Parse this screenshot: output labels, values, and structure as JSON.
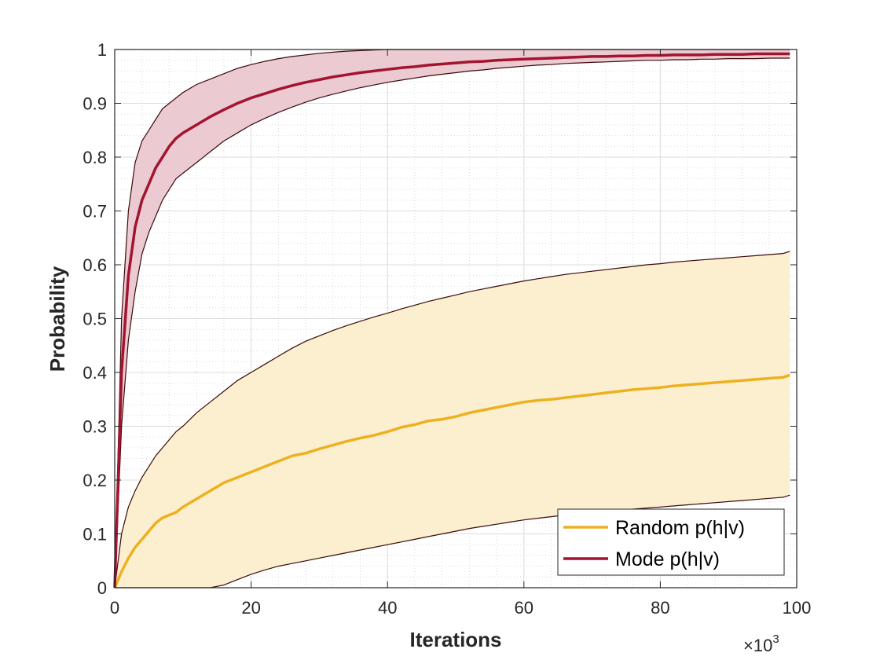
{
  "chart_data": {
    "type": "line",
    "title": "",
    "xlabel": "Iterations",
    "ylabel": "Probability",
    "xlim": [
      0,
      100
    ],
    "ylim": [
      0,
      1
    ],
    "xticks": [
      "0",
      "20",
      "40",
      "60",
      "80",
      "100"
    ],
    "yticks": [
      "0",
      "0.1",
      "0.2",
      "0.3",
      "0.4",
      "0.5",
      "0.6",
      "0.7",
      "0.8",
      "0.9",
      "1"
    ],
    "x_multiplier": {
      "base": "×10",
      "exponent": "3"
    },
    "grid": true,
    "minor_grid": true,
    "legend_position": "bottom-right",
    "x": [
      0,
      1,
      2,
      3,
      4,
      5,
      6,
      7,
      8,
      9,
      10,
      12,
      14,
      16,
      18,
      20,
      22,
      24,
      26,
      28,
      30,
      32,
      34,
      36,
      38,
      40,
      42,
      44,
      46,
      48,
      50,
      52,
      54,
      56,
      58,
      60,
      62,
      64,
      66,
      68,
      70,
      72,
      74,
      76,
      78,
      80,
      82,
      84,
      86,
      88,
      90,
      92,
      94,
      96,
      98,
      99
    ],
    "series": [
      {
        "name": "Random p(h|v)",
        "color": "#EDB120",
        "fill": "#FBEFCF",
        "mean": [
          0.0,
          0.03,
          0.055,
          0.075,
          0.09,
          0.105,
          0.12,
          0.13,
          0.135,
          0.14,
          0.15,
          0.165,
          0.18,
          0.195,
          0.205,
          0.215,
          0.225,
          0.235,
          0.245,
          0.25,
          0.258,
          0.265,
          0.272,
          0.278,
          0.283,
          0.29,
          0.298,
          0.303,
          0.31,
          0.313,
          0.318,
          0.325,
          0.33,
          0.335,
          0.34,
          0.345,
          0.348,
          0.35,
          0.353,
          0.356,
          0.359,
          0.362,
          0.365,
          0.368,
          0.37,
          0.372,
          0.375,
          0.377,
          0.379,
          0.381,
          0.383,
          0.385,
          0.387,
          0.389,
          0.391,
          0.395
        ],
        "lower": [
          0.0,
          0.0,
          0.0,
          0.0,
          0.0,
          0.0,
          0.0,
          0.0,
          0.0,
          0.0,
          0.0,
          0.0,
          0.0,
          0.005,
          0.015,
          0.025,
          0.033,
          0.04,
          0.045,
          0.05,
          0.055,
          0.06,
          0.065,
          0.07,
          0.075,
          0.08,
          0.085,
          0.09,
          0.095,
          0.1,
          0.105,
          0.11,
          0.114,
          0.118,
          0.122,
          0.126,
          0.129,
          0.132,
          0.135,
          0.138,
          0.14,
          0.142,
          0.144,
          0.146,
          0.148,
          0.15,
          0.152,
          0.154,
          0.156,
          0.158,
          0.16,
          0.162,
          0.164,
          0.166,
          0.168,
          0.172
        ],
        "upper": [
          0.0,
          0.1,
          0.15,
          0.18,
          0.205,
          0.225,
          0.245,
          0.26,
          0.275,
          0.29,
          0.3,
          0.325,
          0.345,
          0.365,
          0.385,
          0.4,
          0.415,
          0.43,
          0.445,
          0.458,
          0.468,
          0.478,
          0.487,
          0.495,
          0.503,
          0.51,
          0.518,
          0.525,
          0.532,
          0.538,
          0.544,
          0.55,
          0.555,
          0.56,
          0.565,
          0.57,
          0.574,
          0.578,
          0.582,
          0.585,
          0.588,
          0.591,
          0.594,
          0.597,
          0.6,
          0.602,
          0.605,
          0.607,
          0.609,
          0.611,
          0.613,
          0.615,
          0.617,
          0.619,
          0.621,
          0.625
        ]
      },
      {
        "name": "Mode p(h|v)",
        "color": "#A2142F",
        "fill": "#EBCAD1",
        "mean": [
          0.0,
          0.4,
          0.58,
          0.67,
          0.72,
          0.75,
          0.78,
          0.8,
          0.82,
          0.835,
          0.845,
          0.86,
          0.875,
          0.888,
          0.9,
          0.91,
          0.918,
          0.926,
          0.933,
          0.939,
          0.944,
          0.949,
          0.953,
          0.957,
          0.96,
          0.963,
          0.966,
          0.968,
          0.971,
          0.973,
          0.975,
          0.977,
          0.978,
          0.98,
          0.981,
          0.982,
          0.983,
          0.984,
          0.985,
          0.986,
          0.987,
          0.987,
          0.988,
          0.988,
          0.989,
          0.989,
          0.99,
          0.99,
          0.99,
          0.991,
          0.991,
          0.991,
          0.992,
          0.992,
          0.992,
          0.992
        ],
        "lower": [
          0.0,
          0.3,
          0.46,
          0.55,
          0.62,
          0.66,
          0.69,
          0.72,
          0.74,
          0.76,
          0.77,
          0.79,
          0.81,
          0.83,
          0.845,
          0.86,
          0.872,
          0.883,
          0.893,
          0.902,
          0.91,
          0.917,
          0.923,
          0.929,
          0.934,
          0.939,
          0.943,
          0.947,
          0.951,
          0.954,
          0.957,
          0.96,
          0.962,
          0.965,
          0.967,
          0.969,
          0.971,
          0.972,
          0.974,
          0.975,
          0.976,
          0.977,
          0.978,
          0.979,
          0.98,
          0.98,
          0.981,
          0.981,
          0.982,
          0.982,
          0.983,
          0.983,
          0.983,
          0.984,
          0.984,
          0.984
        ],
        "upper": [
          0.0,
          0.5,
          0.7,
          0.79,
          0.83,
          0.85,
          0.87,
          0.89,
          0.9,
          0.91,
          0.92,
          0.935,
          0.945,
          0.955,
          0.965,
          0.972,
          0.978,
          0.983,
          0.987,
          0.99,
          0.993,
          0.995,
          0.997,
          0.998,
          0.999,
          1.0,
          1.0,
          1.0,
          1.0,
          1.0,
          1.0,
          1.0,
          1.0,
          1.0,
          1.0,
          1.0,
          1.0,
          1.0,
          1.0,
          1.0,
          1.0,
          1.0,
          1.0,
          1.0,
          1.0,
          1.0,
          1.0,
          1.0,
          1.0,
          1.0,
          1.0,
          1.0,
          1.0,
          1.0,
          1.0,
          1.0
        ]
      }
    ]
  }
}
